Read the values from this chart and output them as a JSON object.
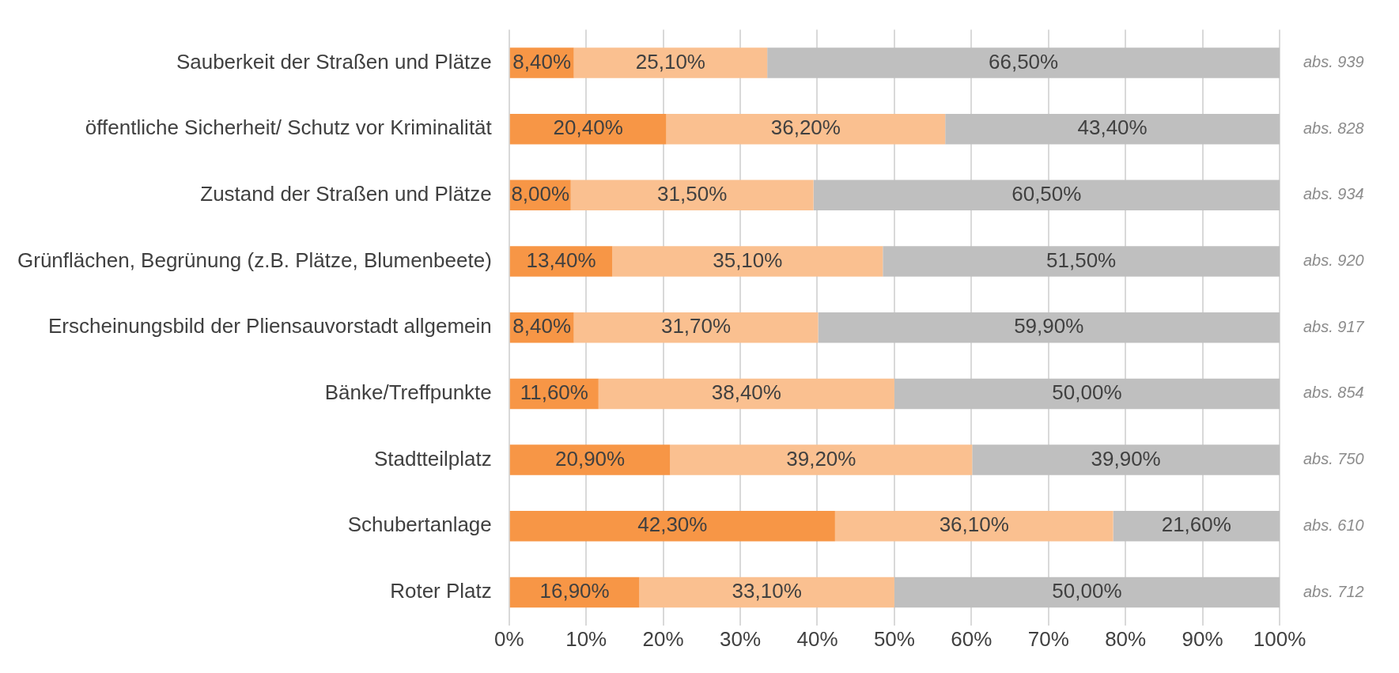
{
  "chart_data": {
    "type": "bar",
    "orientation": "horizontal",
    "stacked": true,
    "categories": [
      "Sauberkeit der Straßen und Plätze",
      "öffentliche Sicherheit/ Schutz vor Kriminalität",
      "Zustand der Straßen und Plätze",
      "Grünflächen, Begrünung (z.B. Plätze, Blumenbeete)",
      "Erscheinungsbild der Pliensauvorstadt allgemein",
      "Bänke/Treffpunkte",
      "Stadtteilplatz",
      "Schubertanlage",
      "Roter Platz"
    ],
    "series": [
      {
        "color": "#f79646",
        "values": [
          8.4,
          20.4,
          8.0,
          13.4,
          8.4,
          11.6,
          20.9,
          42.3,
          16.9
        ],
        "value_labels": [
          "8,40%",
          "20,40%",
          "8,00%",
          "13,40%",
          "8,40%",
          "11,60%",
          "20,90%",
          "42,30%",
          "16,90%"
        ]
      },
      {
        "color": "#fac090",
        "values": [
          25.1,
          36.2,
          31.5,
          35.1,
          31.7,
          38.4,
          39.2,
          36.1,
          33.1
        ],
        "value_labels": [
          "25,10%",
          "36,20%",
          "31,50%",
          "35,10%",
          "31,70%",
          "38,40%",
          "39,20%",
          "36,10%",
          "33,10%"
        ]
      },
      {
        "color": "#bfbfbf",
        "values": [
          66.5,
          43.4,
          60.5,
          51.5,
          59.9,
          50.0,
          39.9,
          21.6,
          50.0
        ],
        "value_labels": [
          "66,50%",
          "43,40%",
          "60,50%",
          "51,50%",
          "59,90%",
          "50,00%",
          "39,90%",
          "21,60%",
          "50,00%"
        ]
      }
    ],
    "xlim": [
      0,
      100
    ],
    "xticks": [
      {
        "value": 0,
        "label": "0%"
      },
      {
        "value": 10,
        "label": "10%"
      },
      {
        "value": 20,
        "label": "20%"
      },
      {
        "value": 30,
        "label": "30%"
      },
      {
        "value": 40,
        "label": "40%"
      },
      {
        "value": 50,
        "label": "50%"
      },
      {
        "value": 60,
        "label": "60%"
      },
      {
        "value": 70,
        "label": "70%"
      },
      {
        "value": 80,
        "label": "80%"
      },
      {
        "value": 90,
        "label": "90%"
      },
      {
        "value": 100,
        "label": "100%"
      }
    ],
    "grid": "x",
    "legend": false,
    "annotations": [
      "abs. 939",
      "abs. 828",
      "abs. 934",
      "abs. 920",
      "abs. 917",
      "abs. 854",
      "abs. 750",
      "abs. 610",
      "abs. 712"
    ]
  }
}
